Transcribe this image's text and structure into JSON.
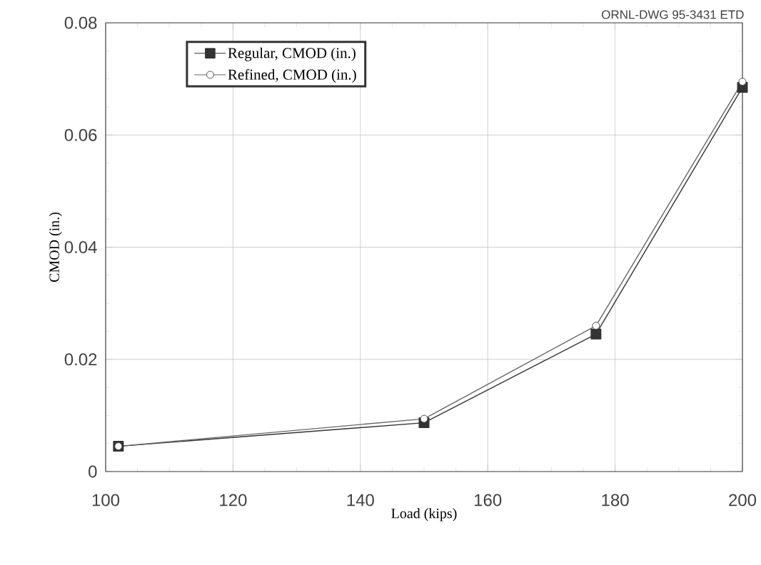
{
  "chart_data": {
    "type": "line",
    "xlabel": "Load (kips)",
    "ylabel": "CMOD (in.)",
    "annotations": [
      "ORNL-DWG 95-3431 ETD"
    ],
    "series": [
      {
        "name": "Regular, CMOD (in.)",
        "color": "#333333",
        "marker": "square",
        "x": [
          102,
          150,
          177,
          200
        ],
        "values": [
          0.0045,
          0.0087,
          0.0245,
          0.0685
        ]
      },
      {
        "name": "Refined, CMOD (in.)",
        "color": "#666666",
        "marker": "circle",
        "x": [
          102,
          150,
          177,
          200
        ],
        "values": [
          0.0045,
          0.0094,
          0.026,
          0.0695
        ]
      }
    ],
    "xlim": [
      100,
      200
    ],
    "ylim": [
      0,
      0.08
    ],
    "xticks": [
      100,
      120,
      140,
      160,
      180,
      200
    ],
    "yticks": [
      0,
      0.02,
      0.04,
      0.06,
      0.08
    ],
    "grid": true,
    "legend": "top left"
  }
}
